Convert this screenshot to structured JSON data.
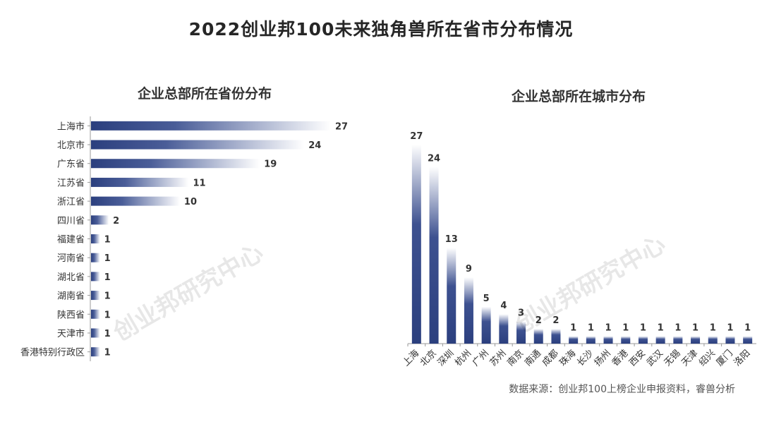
{
  "title": "2022创业邦100未来独角兽所在省市分布情况",
  "source": "数据来源：创业邦100上榜企业申报资料，睿兽分析",
  "watermark": "创业邦研究中心",
  "colors": {
    "bar_dark": "#2b3f7e",
    "bar_light": "#ffffff",
    "axis": "#999999"
  },
  "chart_data": [
    {
      "type": "bar",
      "orientation": "horizontal",
      "title": "企业总部所在省份分布",
      "categories": [
        "上海市",
        "北京市",
        "广东省",
        "江苏省",
        "浙江省",
        "四川省",
        "福建省",
        "河南省",
        "湖北省",
        "湖南省",
        "陕西省",
        "天津市",
        "香港特别行政区"
      ],
      "values": [
        27,
        24,
        19,
        11,
        10,
        2,
        1,
        1,
        1,
        1,
        1,
        1,
        1
      ],
      "xlabel": "",
      "ylabel": ""
    },
    {
      "type": "bar",
      "orientation": "vertical",
      "title": "企业总部所在城市分布",
      "categories": [
        "上海",
        "北京",
        "深圳",
        "杭州",
        "广州",
        "苏州",
        "南京",
        "南通",
        "成都",
        "珠海",
        "长沙",
        "扬州",
        "香港",
        "西安",
        "武汉",
        "无锡",
        "天津",
        "绍兴",
        "厦门",
        "洛阳"
      ],
      "values": [
        27,
        24,
        13,
        9,
        5,
        4,
        3,
        2,
        2,
        1,
        1,
        1,
        1,
        1,
        1,
        1,
        1,
        1,
        1,
        1
      ],
      "xlabel": "",
      "ylabel": ""
    }
  ]
}
